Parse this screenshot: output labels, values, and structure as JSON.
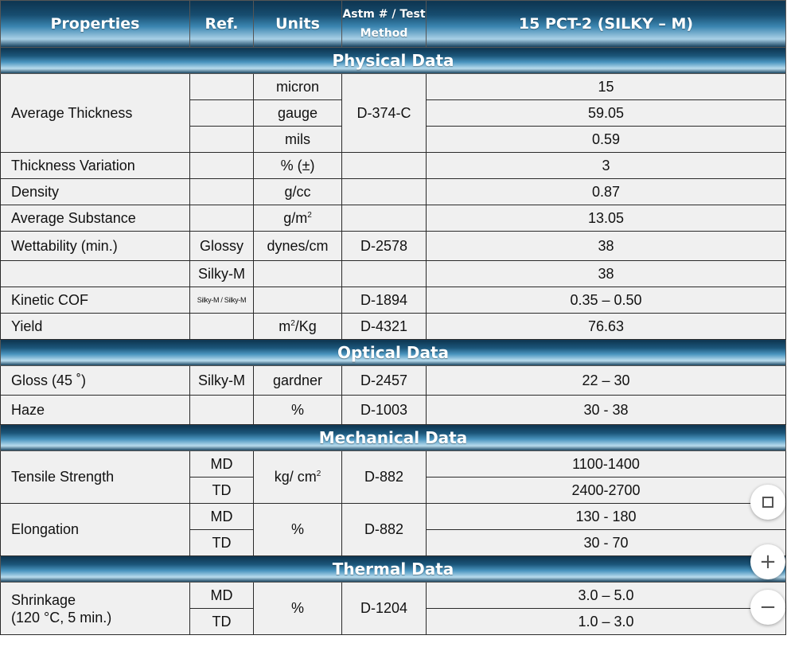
{
  "header": {
    "properties": "Properties",
    "ref": "Ref.",
    "units": "Units",
    "method_line1": "Astm # / Test",
    "method_line2": "Method",
    "product": "15 PCT-2 (SILKY – M)"
  },
  "sections": {
    "physical": "Physical Data",
    "optical": "Optical Data",
    "mechanical": "Mechanical Data",
    "thermal": "Thermal Data"
  },
  "physical": {
    "avg_thickness": {
      "label": "Average Thickness",
      "method": "D-374-C",
      "rows": [
        {
          "unit": "micron",
          "value": "15"
        },
        {
          "unit": "gauge",
          "value": "59.05"
        },
        {
          "unit": "mils",
          "value": "0.59"
        }
      ]
    },
    "thickness_variation": {
      "label": "Thickness Variation",
      "unit": "% (±)",
      "value": "3"
    },
    "density": {
      "label": "Density",
      "unit": "g/cc",
      "value": "0.87"
    },
    "avg_substance": {
      "label": "Average Substance",
      "unit_base": "g/m",
      "unit_sup": "2",
      "value": "13.05"
    },
    "wettability": {
      "label": "Wettability (min.)",
      "ref": "Glossy",
      "unit": "dynes/cm",
      "method": "D-2578",
      "value": "38"
    },
    "wettability_silky": {
      "ref": "Silky-M",
      "value": "38"
    },
    "kinetic_cof": {
      "label": "Kinetic COF",
      "ref": "Silky-M / Silky-M",
      "method": "D-1894",
      "value": "0.35 – 0.50"
    },
    "yield": {
      "label": "Yield",
      "unit_pre": "m",
      "unit_sup": "2",
      "unit_post": "/Kg",
      "method": "D-4321",
      "value": "76.63"
    }
  },
  "optical": {
    "gloss": {
      "label": "Gloss (45 ˚)",
      "ref": "Silky-M",
      "unit": "gardner",
      "method": "D-2457",
      "value": "22 – 30"
    },
    "haze": {
      "label": "Haze",
      "unit": "%",
      "method": "D-1003",
      "value": "30 - 38"
    }
  },
  "mechanical": {
    "tensile": {
      "label": "Tensile Strength",
      "unit_base": "kg/ cm",
      "unit_sup": "2",
      "method": "D-882",
      "md_ref": "MD",
      "md_value": "1100-1400",
      "td_ref": "TD",
      "td_value": "2400-2700"
    },
    "elongation": {
      "label": "Elongation",
      "unit": "%",
      "method": "D-882",
      "md_ref": "MD",
      "md_value": "130 - 180",
      "td_ref": "TD",
      "td_value": "30 - 70"
    }
  },
  "thermal": {
    "shrinkage": {
      "label_line1": "Shrinkage",
      "label_line2": "(120 °C, 5 min.)",
      "unit": "%",
      "method": "D-1204",
      "md_ref": "MD",
      "md_value": "3.0 – 5.0",
      "td_ref": "TD",
      "td_value": "1.0 – 3.0"
    }
  },
  "controls": {
    "plus": "+",
    "minus": "−"
  }
}
